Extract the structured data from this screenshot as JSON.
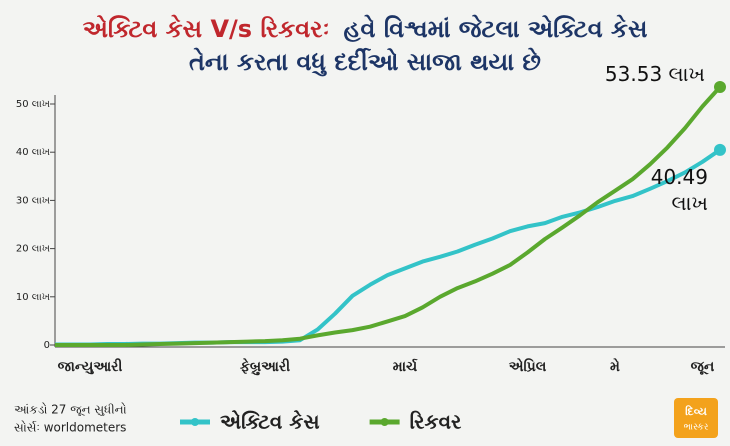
{
  "chart_data": {
    "type": "line",
    "title": [
      "એક્ટિવ કેસ V/s રિકવરઃ",
      "હવે વિશ્વમાં જેટલા એક્ટિવ કેસ",
      "તેના કરતા વધુ દર્દીઓ સાજા થયા છે"
    ],
    "categories": [
      null,
      null,
      "જાન્યુઆરી",
      null,
      null,
      null,
      null,
      null,
      null,
      null,
      null,
      null,
      "ફેબ્રુઆરી",
      null,
      null,
      null,
      null,
      null,
      null,
      null,
      "માર્ચ",
      null,
      null,
      null,
      null,
      null,
      null,
      "એપ્રિલ",
      null,
      null,
      null,
      null,
      "મે",
      null,
      null,
      null,
      null,
      "જૂન",
      null
    ],
    "series": [
      {
        "name": "એક્ટિવ કેસ",
        "color": "#33c3c8",
        "values": [
          0.1,
          0.1,
          0.1,
          0.2,
          0.2,
          0.3,
          0.3,
          0.4,
          0.5,
          0.5,
          0.6,
          0.6,
          0.6,
          0.7,
          1.0,
          3.2,
          6.5,
          10.2,
          12.5,
          14.5,
          15.9,
          17.3,
          18.3,
          19.4,
          20.8,
          22.1,
          23.6,
          24.6,
          25.3,
          26.6,
          27.5,
          28.6,
          29.9,
          30.9,
          32.4,
          34.0,
          35.8,
          38.0,
          40.49
        ],
        "value_labels": [
          null,
          null,
          null,
          null,
          null,
          null,
          null,
          null,
          null,
          null,
          null,
          null,
          null,
          null,
          null,
          null,
          null,
          null,
          null,
          null,
          null,
          null,
          null,
          null,
          null,
          null,
          null,
          null,
          null,
          null,
          null,
          null,
          null,
          null,
          null,
          null,
          null,
          null,
          "40.49 લાખ"
        ]
      },
      {
        "name": "રિકવર",
        "color": "#5aa82e",
        "values": [
          0,
          0,
          0,
          0,
          0,
          0.1,
          0.2,
          0.3,
          0.4,
          0.5,
          0.6,
          0.7,
          0.8,
          1.0,
          1.3,
          2.0,
          2.6,
          3.1,
          3.8,
          4.9,
          6.0,
          7.8,
          10.0,
          11.8,
          13.2,
          14.8,
          16.6,
          19.2,
          22.0,
          24.4,
          26.9,
          29.6,
          32.0,
          34.4,
          37.5,
          41.0,
          45.0,
          49.5,
          53.53
        ],
        "value_labels": [
          null,
          null,
          null,
          null,
          null,
          null,
          null,
          null,
          null,
          null,
          null,
          null,
          null,
          null,
          null,
          null,
          null,
          null,
          null,
          null,
          null,
          null,
          null,
          null,
          null,
          null,
          null,
          null,
          null,
          null,
          null,
          null,
          null,
          null,
          null,
          null,
          null,
          null,
          "53.53 લાખ"
        ]
      }
    ],
    "ylim": [
      0,
      50
    ],
    "yticks": [
      0,
      {
        "value": 10,
        "label": "10 લાખ"
      },
      {
        "value": 20,
        "label": "20 લાખ"
      },
      {
        "value": 30,
        "label": "30 લાખ"
      },
      {
        "value": 40,
        "label": "40 લાખ"
      },
      {
        "value": 50,
        "label": "50 લાખ"
      }
    ],
    "notes": [
      "આંકડો 27 જૂન સુધીનો",
      "સોર્સઃ worldometers"
    ],
    "logo": [
      "દિવ્ય",
      "ભાસ્કર"
    ]
  }
}
